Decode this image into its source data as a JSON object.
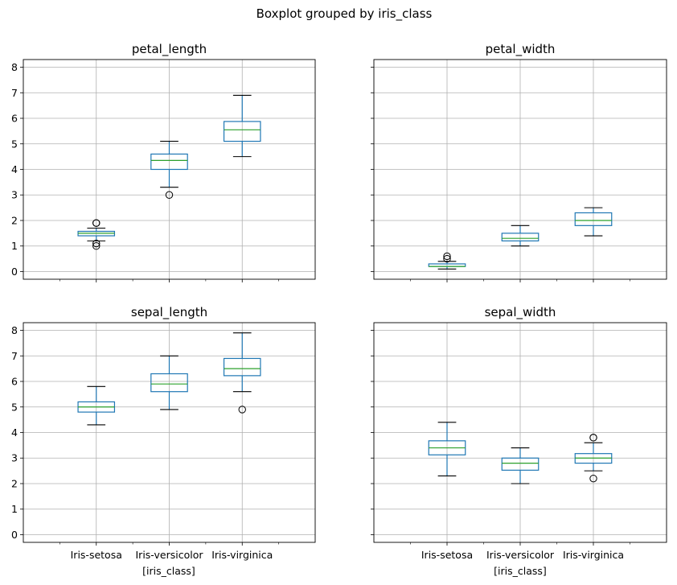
{
  "figure": {
    "suptitle": "Boxplot grouped by iris_class",
    "xlabel": "[iris_class]",
    "colors": {
      "box": "#1f77b4",
      "median": "#2ca02c",
      "whisker": "#000000",
      "grid": "#b0b0b0",
      "frame": "#000000"
    }
  },
  "chart_data": [
    {
      "type": "box",
      "title": "petal_length",
      "categories": [
        "Iris-setosa",
        "Iris-versicolor",
        "Iris-virginica"
      ],
      "ylim": [
        -0.3,
        8.3
      ],
      "yticks": [
        0,
        1,
        2,
        3,
        4,
        5,
        6,
        7,
        8
      ],
      "grid": true,
      "show_xtick_labels": false,
      "show_ytick_labels": true,
      "boxes": [
        {
          "whislo": 1.2,
          "q1": 1.4,
          "med": 1.5,
          "q3": 1.575,
          "whishi": 1.7,
          "fliers": [
            1.9,
            1.9,
            1.1,
            1.0
          ]
        },
        {
          "whislo": 3.3,
          "q1": 4.0,
          "med": 4.35,
          "q3": 4.6,
          "whishi": 5.1,
          "fliers": [
            3.0
          ]
        },
        {
          "whislo": 4.5,
          "q1": 5.1,
          "med": 5.55,
          "q3": 5.875,
          "whishi": 6.9,
          "fliers": []
        }
      ]
    },
    {
      "type": "box",
      "title": "petal_width",
      "categories": [
        "Iris-setosa",
        "Iris-versicolor",
        "Iris-virginica"
      ],
      "ylim": [
        -0.3,
        8.3
      ],
      "yticks": [
        0,
        1,
        2,
        3,
        4,
        5,
        6,
        7,
        8
      ],
      "grid": true,
      "show_xtick_labels": false,
      "show_ytick_labels": false,
      "boxes": [
        {
          "whislo": 0.1,
          "q1": 0.2,
          "med": 0.2,
          "q3": 0.3,
          "whishi": 0.4,
          "fliers": [
            0.5,
            0.6
          ]
        },
        {
          "whislo": 1.0,
          "q1": 1.2,
          "med": 1.3,
          "q3": 1.5,
          "whishi": 1.8,
          "fliers": []
        },
        {
          "whislo": 1.4,
          "q1": 1.8,
          "med": 2.0,
          "q3": 2.3,
          "whishi": 2.5,
          "fliers": []
        }
      ]
    },
    {
      "type": "box",
      "title": "sepal_length",
      "categories": [
        "Iris-setosa",
        "Iris-versicolor",
        "Iris-virginica"
      ],
      "ylim": [
        -0.3,
        8.3
      ],
      "yticks": [
        0,
        1,
        2,
        3,
        4,
        5,
        6,
        7,
        8
      ],
      "grid": true,
      "show_xtick_labels": true,
      "show_ytick_labels": true,
      "boxes": [
        {
          "whislo": 4.3,
          "q1": 4.8,
          "med": 5.0,
          "q3": 5.2,
          "whishi": 5.8,
          "fliers": []
        },
        {
          "whislo": 4.9,
          "q1": 5.6,
          "med": 5.9,
          "q3": 6.3,
          "whishi": 7.0,
          "fliers": []
        },
        {
          "whislo": 5.6,
          "q1": 6.225,
          "med": 6.5,
          "q3": 6.9,
          "whishi": 7.9,
          "fliers": [
            4.9
          ]
        }
      ]
    },
    {
      "type": "box",
      "title": "sepal_width",
      "categories": [
        "Iris-setosa",
        "Iris-versicolor",
        "Iris-virginica"
      ],
      "ylim": [
        -0.3,
        8.3
      ],
      "yticks": [
        0,
        1,
        2,
        3,
        4,
        5,
        6,
        7,
        8
      ],
      "grid": true,
      "show_xtick_labels": true,
      "show_ytick_labels": false,
      "boxes": [
        {
          "whislo": 2.3,
          "q1": 3.125,
          "med": 3.4,
          "q3": 3.675,
          "whishi": 4.4,
          "fliers": []
        },
        {
          "whislo": 2.0,
          "q1": 2.525,
          "med": 2.8,
          "q3": 3.0,
          "whishi": 3.4,
          "fliers": []
        },
        {
          "whislo": 2.5,
          "q1": 2.8,
          "med": 3.0,
          "q3": 3.175,
          "whishi": 3.6,
          "fliers": [
            3.8,
            3.8,
            2.2
          ]
        }
      ]
    }
  ]
}
